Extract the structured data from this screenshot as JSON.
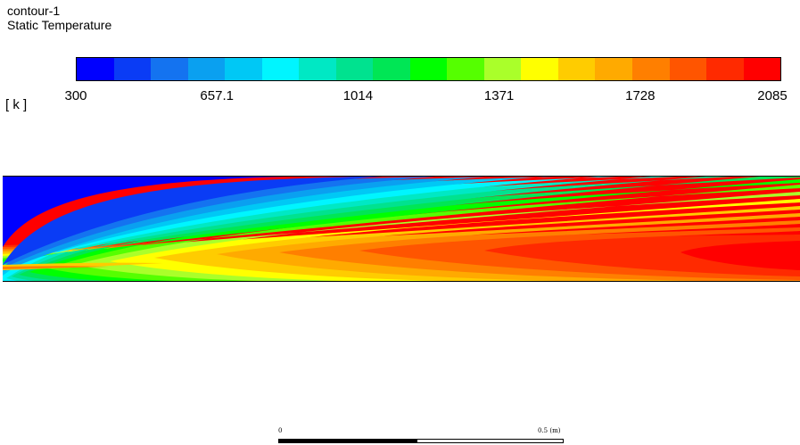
{
  "title": {
    "name": "contour-1",
    "variable": "Static Temperature"
  },
  "colorbar": {
    "unit": "[ k ]",
    "tick_labels": [
      "300",
      "657.1",
      "1014",
      "1371",
      "1728",
      "2085"
    ],
    "colors": [
      "#0000ff",
      "#0a3cf5",
      "#1473f0",
      "#0aa0f0",
      "#00c8f5",
      "#00f5ff",
      "#00e8c4",
      "#00e28f",
      "#00e655",
      "#00ff00",
      "#55ff00",
      "#aaff2a",
      "#ffff00",
      "#ffcc00",
      "#ffaa00",
      "#ff7f00",
      "#ff5500",
      "#ff2a00",
      "#ff0000"
    ]
  },
  "scale_bar": {
    "left_label": "0",
    "right_label": "0.5 (m)"
  }
}
